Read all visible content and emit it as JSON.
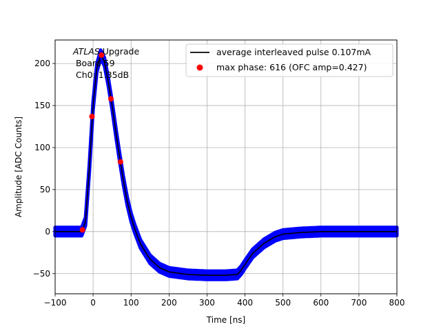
{
  "chart_data": {
    "type": "line",
    "xlabel": "Time [ns]",
    "ylabel": "Amplitude [ADC Counts]",
    "xlim": [
      -100,
      800
    ],
    "ylim": [
      -74,
      228
    ],
    "xticks": [
      -100,
      0,
      100,
      200,
      300,
      400,
      500,
      600,
      700,
      800
    ],
    "xtick_labels": [
      "−100",
      "0",
      "100",
      "200",
      "300",
      "400",
      "500",
      "600",
      "700",
      "800"
    ],
    "yticks": [
      -50,
      0,
      50,
      100,
      150,
      200
    ],
    "ytick_labels": [
      "−50",
      "0",
      "50",
      "100",
      "150",
      "200"
    ],
    "grid": true,
    "legend_position": "top-right",
    "annotation": {
      "line1_italic": "ATLAS",
      "line1_rest": " Upgrade",
      "line2": " Board 59",
      "line3": " Ch0: 1.35dB"
    },
    "series": [
      {
        "name": "average interleaved pulse 0.107mA",
        "color": "#000000",
        "kind": "line",
        "x": [
          -100,
          -40,
          -30,
          -20,
          -10,
          0,
          10,
          20,
          30,
          40,
          50,
          60,
          70,
          80,
          90,
          100,
          110,
          125,
          150,
          175,
          200,
          250,
          300,
          350,
          380,
          390,
          400,
          420,
          450,
          480,
          500,
          550,
          600,
          700,
          800
        ],
        "y": [
          0,
          0,
          0,
          12,
          75,
          150,
          195,
          211,
          202,
          178,
          150,
          118,
          88,
          60,
          36,
          17,
          3,
          -15,
          -33,
          -43,
          -48,
          -51,
          -52,
          -52,
          -51,
          -46,
          -39,
          -26,
          -14,
          -6,
          -3,
          -1,
          0,
          0,
          0
        ]
      },
      {
        "name": "max phase: 616 (OFC amp=0.427)",
        "color": "#ff0000",
        "kind": "points",
        "x": [
          -28,
          -3,
          22,
          47,
          72
        ],
        "y": [
          2,
          137,
          210,
          158,
          83
        ]
      },
      {
        "name": "",
        "color": "#0000ff",
        "kind": "band",
        "half_width": 5
      }
    ]
  }
}
